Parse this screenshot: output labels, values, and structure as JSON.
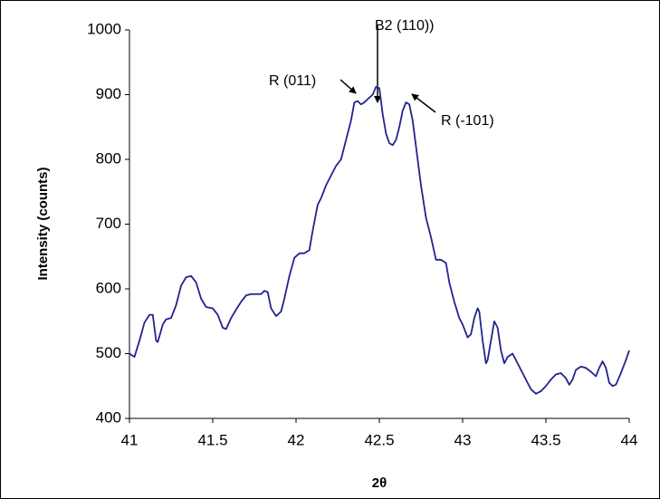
{
  "chart_data": {
    "type": "line",
    "ylabel": "Intensity (counts)",
    "xlabel": "2θ",
    "annotations": [
      "R (011)",
      "B2 (110))",
      "R (-101)"
    ],
    "x": [
      41.0,
      41.03,
      41.06,
      41.09,
      41.12,
      41.14,
      41.16,
      41.17,
      41.2,
      41.22,
      41.25,
      41.28,
      41.31,
      41.34,
      41.37,
      41.4,
      41.43,
      41.46,
      41.5,
      41.53,
      41.56,
      41.58,
      41.61,
      41.64,
      41.67,
      41.7,
      41.73,
      41.76,
      41.79,
      41.81,
      41.83,
      41.85,
      41.88,
      41.91,
      41.93,
      41.96,
      41.99,
      42.02,
      42.05,
      42.08,
      42.1,
      42.13,
      42.15,
      42.18,
      42.21,
      42.24,
      42.27,
      42.3,
      42.33,
      42.35,
      42.37,
      42.39,
      42.41,
      42.43,
      42.46,
      42.48,
      42.5,
      42.52,
      42.54,
      42.56,
      42.58,
      42.6,
      42.62,
      42.64,
      42.66,
      42.68,
      42.7,
      42.73,
      42.75,
      42.78,
      42.81,
      42.84,
      42.87,
      42.9,
      42.92,
      42.95,
      42.98,
      43.0,
      43.03,
      43.05,
      43.07,
      43.09,
      43.1,
      43.12,
      43.14,
      43.15,
      43.17,
      43.19,
      43.21,
      43.23,
      43.25,
      43.27,
      43.3,
      43.32,
      43.35,
      43.38,
      43.41,
      43.44,
      43.47,
      43.5,
      43.53,
      43.56,
      43.59,
      43.62,
      43.64,
      43.66,
      43.68,
      43.71,
      43.74,
      43.77,
      43.8,
      43.82,
      43.84,
      43.86,
      43.88,
      43.9,
      43.92,
      43.95,
      43.98,
      44.0
    ],
    "series": [
      {
        "color": "#23238c",
        "values": [
          500,
          495,
          520,
          548,
          560,
          560,
          520,
          518,
          545,
          553,
          555,
          575,
          605,
          618,
          620,
          610,
          585,
          572,
          570,
          560,
          540,
          538,
          555,
          568,
          580,
          590,
          592,
          592,
          592,
          597,
          595,
          570,
          558,
          565,
          585,
          620,
          648,
          655,
          655,
          660,
          690,
          730,
          740,
          760,
          775,
          790,
          800,
          830,
          860,
          888,
          890,
          885,
          888,
          893,
          900,
          912,
          910,
          870,
          840,
          825,
          822,
          830,
          850,
          875,
          888,
          885,
          860,
          800,
          760,
          710,
          680,
          645,
          645,
          640,
          610,
          580,
          555,
          545,
          525,
          530,
          555,
          570,
          565,
          520,
          485,
          490,
          520,
          550,
          540,
          505,
          485,
          495,
          500,
          490,
          475,
          460,
          445,
          438,
          442,
          450,
          460,
          468,
          470,
          462,
          452,
          460,
          475,
          480,
          478,
          472,
          465,
          478,
          488,
          478,
          455,
          450,
          452,
          470,
          490,
          505
        ]
      }
    ],
    "xlim": [
      41,
      44
    ],
    "ylim": [
      400,
      1000
    ],
    "xticks": [
      41,
      41.5,
      42,
      42.5,
      43,
      43.5,
      44
    ],
    "yticks": [
      400,
      500,
      600,
      700,
      800,
      900,
      1000
    ]
  }
}
